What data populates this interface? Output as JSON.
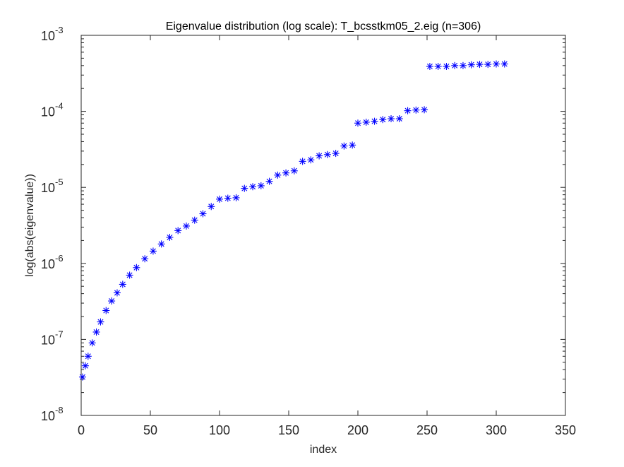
{
  "chart_data": {
    "type": "scatter",
    "title": "Eigenvalue distribution (log scale): T_bcsstkm05_2.eig (n=306)",
    "xlabel": "index",
    "ylabel": "log(abs(eigenvalue))",
    "xlim": [
      0,
      350
    ],
    "ylim": [
      1e-08,
      0.001
    ],
    "yscale": "log",
    "grid": false,
    "marker": "asterisk",
    "marker_color": "#0000ff",
    "x_ticks": [
      0,
      50,
      100,
      150,
      200,
      250,
      300,
      350
    ],
    "y_ticks": [
      {
        "base": "10",
        "exp": "-8",
        "value": 1e-08
      },
      {
        "base": "10",
        "exp": "-7",
        "value": 1e-07
      },
      {
        "base": "10",
        "exp": "-6",
        "value": 1e-06
      },
      {
        "base": "10",
        "exp": "-5",
        "value": 1e-05
      },
      {
        "base": "10",
        "exp": "-4",
        "value": 0.0001
      },
      {
        "base": "10",
        "exp": "-3",
        "value": 0.001
      }
    ],
    "series": [
      {
        "x": [
          1,
          3,
          5,
          8,
          11,
          14,
          18,
          22,
          26,
          30,
          35,
          40,
          46,
          52,
          58,
          64,
          70,
          76,
          82,
          88,
          94,
          100,
          106,
          112,
          118,
          124,
          130,
          136,
          142,
          148,
          154,
          160,
          166,
          172,
          178,
          184,
          190,
          196,
          200,
          206,
          212,
          218,
          224,
          230,
          236,
          242,
          248,
          252,
          258,
          264,
          270,
          276,
          282,
          288,
          294,
          300,
          306
        ],
        "y": [
          3.2e-08,
          4.5e-08,
          6e-08,
          9e-08,
          1.25e-07,
          1.7e-07,
          2.4e-07,
          3.2e-07,
          4.1e-07,
          5.3e-07,
          7e-07,
          8.8e-07,
          1.15e-06,
          1.45e-06,
          1.8e-06,
          2.2e-06,
          2.7e-06,
          3.1e-06,
          3.7e-06,
          4.5e-06,
          5.6e-06,
          7e-06,
          7.2e-06,
          7.3e-06,
          9.7e-06,
          1.02e-05,
          1.05e-05,
          1.2e-05,
          1.45e-05,
          1.55e-05,
          1.65e-05,
          2.2e-05,
          2.3e-05,
          2.6e-05,
          2.7e-05,
          2.8e-05,
          3.5e-05,
          3.6e-05,
          7e-05,
          7.2e-05,
          7.4e-05,
          7.8e-05,
          8e-05,
          8e-05,
          0.000102,
          0.000104,
          0.000105,
          0.00039,
          0.00039,
          0.00039,
          0.0004,
          0.0004,
          0.00041,
          0.000415,
          0.000415,
          0.00042,
          0.00042
        ]
      }
    ]
  }
}
